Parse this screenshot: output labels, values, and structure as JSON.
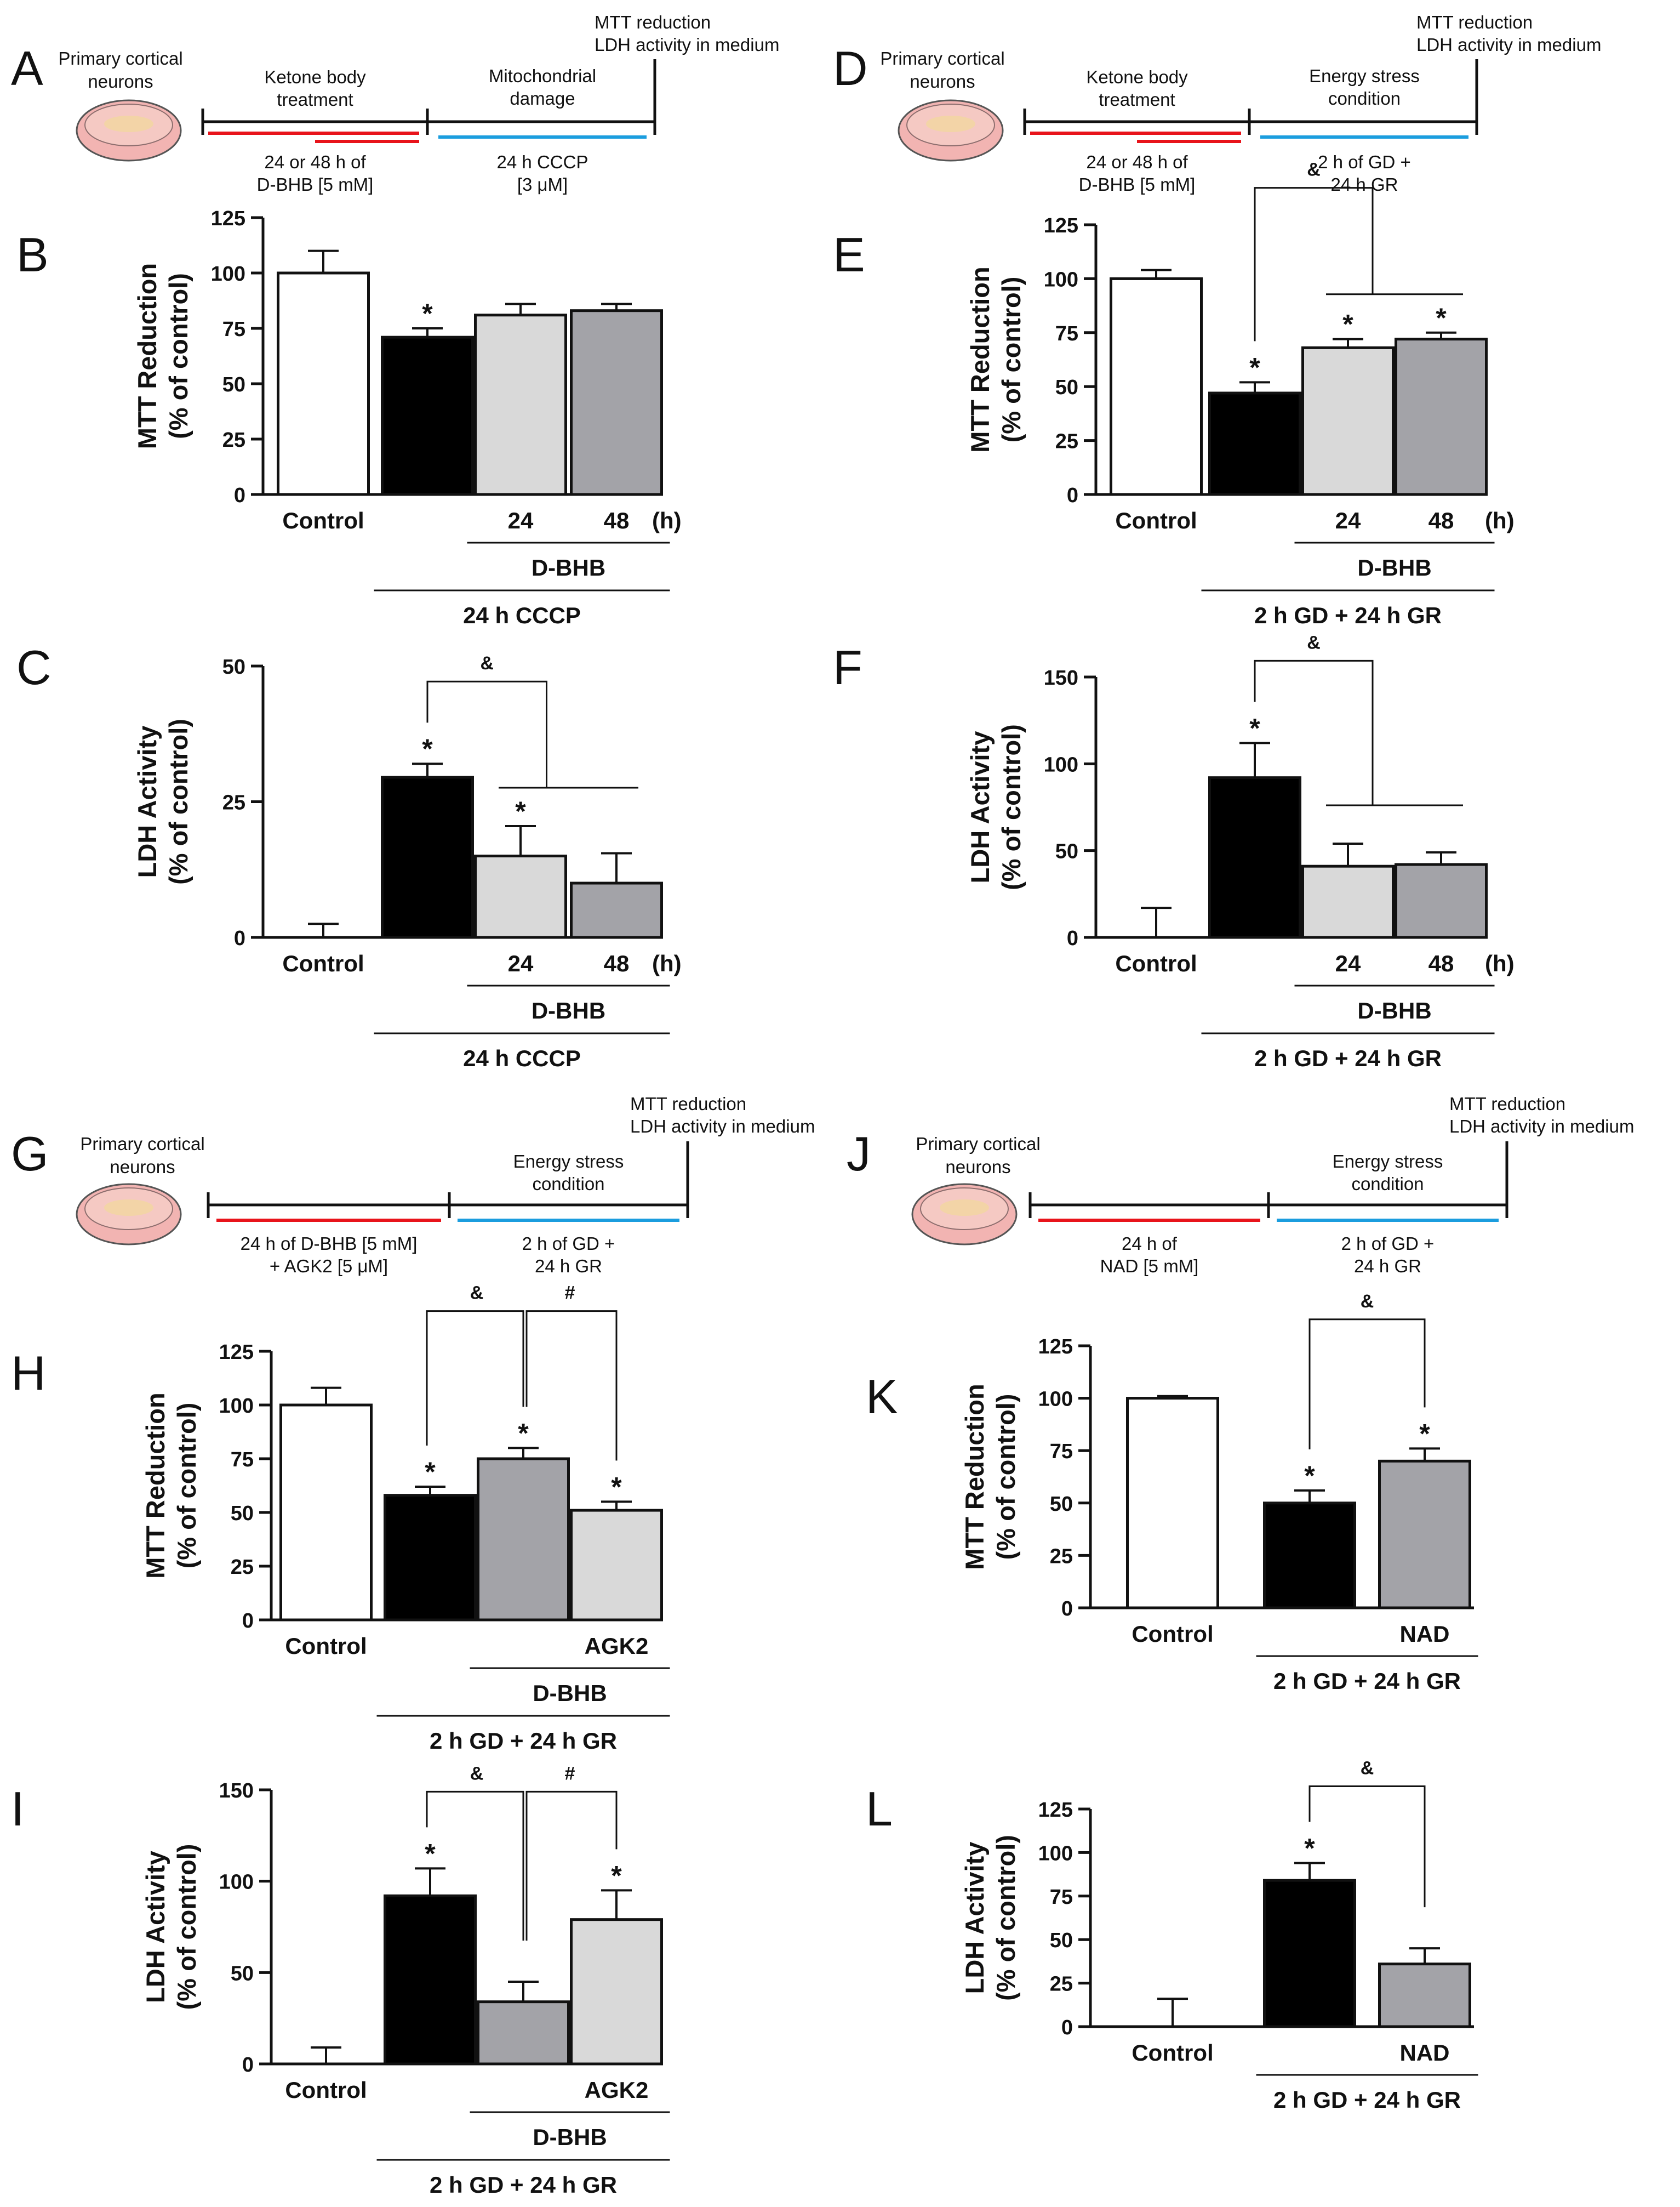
{
  "figure": {
    "colors": {
      "control": "#ffffff",
      "black": "#000000",
      "light": "#d9d9d9",
      "mid": "#a3a3a8",
      "red": "#e8141b",
      "blue": "#1b9dde"
    },
    "schematics": [
      {
        "id": "A",
        "cells": "Primary cortical neurons",
        "title_l1": "MTT reduction",
        "title_l2": "LDH activity in medium",
        "treat1_l1": "Ketone body",
        "treat1_l2": "treatment",
        "treat2_l1": "Mitochondrial",
        "treat2_l2": "damage",
        "cond1_l1": "24 or 48 h of",
        "cond1_l2": "D-BHB [5 mM]",
        "cond2_l1": "24 h CCCP",
        "cond2_l2": "[3 μM]"
      },
      {
        "id": "D",
        "cells": "Primary cortical neurons",
        "title_l1": "MTT reduction",
        "title_l2": "LDH activity in medium",
        "treat1_l1": "Ketone body",
        "treat1_l2": "treatment",
        "treat2_l1": "Energy stress",
        "treat2_l2": "condition",
        "cond1_l1": "24 or 48 h of",
        "cond1_l2": "D-BHB [5 mM]",
        "cond2_l1": "2 h of GD +",
        "cond2_l2": "24 h GR"
      },
      {
        "id": "G",
        "cells": "Primary cortical neurons",
        "title_l1": "MTT reduction",
        "title_l2": "LDH activity in medium",
        "treat1_l1": "",
        "treat1_l2": "",
        "treat2_l1": "Energy stress",
        "treat2_l2": "condition",
        "cond1_l1": "24 h of D-BHB [5 mM]",
        "cond1_l2": "+ AGK2 [5 μM]",
        "cond2_l1": "2 h of GD +",
        "cond2_l2": "24 h GR"
      },
      {
        "id": "J",
        "cells": "Primary cortical neurons",
        "title_l1": "MTT reduction",
        "title_l2": "LDH activity in medium",
        "treat1_l1": "",
        "treat1_l2": "",
        "treat2_l1": "Energy stress",
        "treat2_l2": "condition",
        "cond1_l1": "24 h of",
        "cond1_l2": "NAD [5 mM]",
        "cond2_l1": "2 h of GD +",
        "cond2_l2": "24 h GR"
      }
    ]
  },
  "chart_data": [
    {
      "id": "B",
      "type": "bar",
      "ylabel_l1": "MTT Reduction",
      "ylabel_l2": "(% of control)",
      "ylim": [
        0,
        125
      ],
      "yticks": [
        0,
        25,
        50,
        75,
        100,
        125
      ],
      "categories": [
        "Control",
        "",
        "24",
        "48"
      ],
      "unit": "(h)",
      "values": [
        100,
        71,
        81,
        83
      ],
      "errors": [
        10,
        4,
        5,
        3
      ],
      "fills": [
        "control",
        "black",
        "light",
        "mid"
      ],
      "stars": [
        false,
        true,
        false,
        false
      ],
      "groups": [
        {
          "label": "D-BHB",
          "from": 2,
          "to": 3,
          "level": 1
        },
        {
          "label": "24 h CCCP",
          "from": 1,
          "to": 3,
          "level": 2
        }
      ],
      "brackets": []
    },
    {
      "id": "C",
      "type": "bar",
      "ylabel_l1": "LDH Activity",
      "ylabel_l2": "(% of control)",
      "ylim": [
        0,
        50
      ],
      "yticks": [
        0,
        25,
        50
      ],
      "categories": [
        "Control",
        "",
        "24",
        "48"
      ],
      "unit": "(h)",
      "values": [
        0,
        29.5,
        15,
        10
      ],
      "errors": [
        2.5,
        2.5,
        5.5,
        5.5
      ],
      "fills": [
        "control",
        "black",
        "light",
        "mid"
      ],
      "stars": [
        false,
        true,
        true,
        false
      ],
      "groups": [
        {
          "label": "D-BHB",
          "from": 2,
          "to": 3,
          "level": 1
        },
        {
          "label": "24 h CCCP",
          "from": 1,
          "to": 3,
          "level": 2
        }
      ],
      "brackets": [
        {
          "from": 1,
          "toGroup": [
            2,
            3
          ],
          "label": "&",
          "level": 0
        }
      ]
    },
    {
      "id": "E",
      "type": "bar",
      "ylabel_l1": "MTT Reduction",
      "ylabel_l2": "(% of control)",
      "ylim": [
        0,
        125
      ],
      "yticks": [
        0,
        25,
        50,
        75,
        100,
        125
      ],
      "categories": [
        "Control",
        "",
        "24",
        "48"
      ],
      "unit": "(h)",
      "values": [
        100,
        47,
        68,
        72
      ],
      "errors": [
        4,
        5,
        4,
        3
      ],
      "fills": [
        "control",
        "black",
        "light",
        "mid"
      ],
      "stars": [
        false,
        true,
        true,
        true
      ],
      "groups": [
        {
          "label": "D-BHB",
          "from": 2,
          "to": 3,
          "level": 1
        },
        {
          "label": "2 h GD + 24 h GR",
          "from": 1,
          "to": 3,
          "level": 2
        }
      ],
      "brackets": [
        {
          "from": 1,
          "toGroup": [
            2,
            3
          ],
          "label": "&",
          "level": 0
        }
      ]
    },
    {
      "id": "F",
      "type": "bar",
      "ylabel_l1": "LDH Activity",
      "ylabel_l2": "(% of control)",
      "ylim": [
        0,
        150
      ],
      "yticks": [
        0,
        50,
        100,
        150
      ],
      "categories": [
        "Control",
        "",
        "24",
        "48"
      ],
      "unit": "(h)",
      "values": [
        0,
        92,
        41,
        42
      ],
      "errors": [
        17,
        20,
        13,
        7
      ],
      "fills": [
        "control",
        "black",
        "light",
        "mid"
      ],
      "stars": [
        false,
        true,
        false,
        false
      ],
      "groups": [
        {
          "label": "D-BHB",
          "from": 2,
          "to": 3,
          "level": 1
        },
        {
          "label": "2 h GD + 24 h GR",
          "from": 1,
          "to": 3,
          "level": 2
        }
      ],
      "brackets": [
        {
          "from": 1,
          "toGroup": [
            2,
            3
          ],
          "label": "&",
          "level": 0
        }
      ]
    },
    {
      "id": "H",
      "type": "bar",
      "ylabel_l1": "MTT Reduction",
      "ylabel_l2": "(% of control)",
      "ylim": [
        0,
        125
      ],
      "yticks": [
        0,
        25,
        50,
        75,
        100,
        125
      ],
      "categories": [
        "Control",
        "",
        "",
        "AGK2"
      ],
      "unit": "",
      "values": [
        100,
        58,
        75,
        51
      ],
      "errors": [
        8,
        4,
        5,
        4
      ],
      "fills": [
        "control",
        "black",
        "mid",
        "light"
      ],
      "stars": [
        false,
        true,
        true,
        true
      ],
      "groups": [
        {
          "label": "D-BHB",
          "from": 2,
          "to": 3,
          "level": 1
        },
        {
          "label": "2 h GD + 24 h GR",
          "from": 1,
          "to": 3,
          "level": 2
        }
      ],
      "brackets": [
        {
          "from": 1,
          "to": 2,
          "label": "&",
          "level": 0
        },
        {
          "from": 2,
          "to": 3,
          "label": "#",
          "level": 0
        }
      ]
    },
    {
      "id": "I",
      "type": "bar",
      "ylabel_l1": "LDH Activity",
      "ylabel_l2": "(% of control)",
      "ylim": [
        0,
        150
      ],
      "yticks": [
        0,
        50,
        100,
        150
      ],
      "categories": [
        "Control",
        "",
        "",
        "AGK2"
      ],
      "unit": "",
      "values": [
        0,
        92,
        34,
        79
      ],
      "errors": [
        9,
        15,
        11,
        16
      ],
      "fills": [
        "control",
        "black",
        "mid",
        "light"
      ],
      "stars": [
        false,
        true,
        false,
        true
      ],
      "groups": [
        {
          "label": "D-BHB",
          "from": 2,
          "to": 3,
          "level": 1
        },
        {
          "label": "2 h GD + 24 h GR",
          "from": 1,
          "to": 3,
          "level": 2
        }
      ],
      "brackets": [
        {
          "from": 1,
          "to": 2,
          "label": "&",
          "level": 0
        },
        {
          "from": 2,
          "to": 3,
          "label": "#",
          "level": 0
        }
      ]
    },
    {
      "id": "K",
      "type": "bar",
      "ylabel_l1": "MTT Reduction",
      "ylabel_l2": "(% of control)",
      "ylim": [
        0,
        125
      ],
      "yticks": [
        0,
        25,
        50,
        75,
        100,
        125
      ],
      "categories": [
        "Control",
        "",
        "NAD"
      ],
      "unit": "",
      "values": [
        100,
        50,
        70
      ],
      "errors": [
        1,
        6,
        6
      ],
      "fills": [
        "control",
        "black",
        "mid"
      ],
      "stars": [
        false,
        true,
        true
      ],
      "groups": [
        {
          "label": "2 h GD + 24 h GR",
          "from": 1,
          "to": 2,
          "level": 1
        }
      ],
      "brackets": [
        {
          "from": 1,
          "to": 2,
          "label": "&",
          "level": 0
        }
      ]
    },
    {
      "id": "L",
      "type": "bar",
      "ylabel_l1": "LDH Activity",
      "ylabel_l2": "(% of control)",
      "ylim": [
        0,
        125
      ],
      "yticks": [
        0,
        25,
        50,
        75,
        100,
        125
      ],
      "categories": [
        "Control",
        "",
        "NAD"
      ],
      "unit": "",
      "values": [
        0,
        84,
        36
      ],
      "errors": [
        16,
        10,
        9
      ],
      "fills": [
        "control",
        "black",
        "mid"
      ],
      "stars": [
        false,
        true,
        false
      ],
      "groups": [
        {
          "label": "2 h GD + 24 h GR",
          "from": 1,
          "to": 2,
          "level": 1
        }
      ],
      "brackets": [
        {
          "from": 1,
          "to": 2,
          "label": "&",
          "level": 0
        }
      ]
    }
  ]
}
